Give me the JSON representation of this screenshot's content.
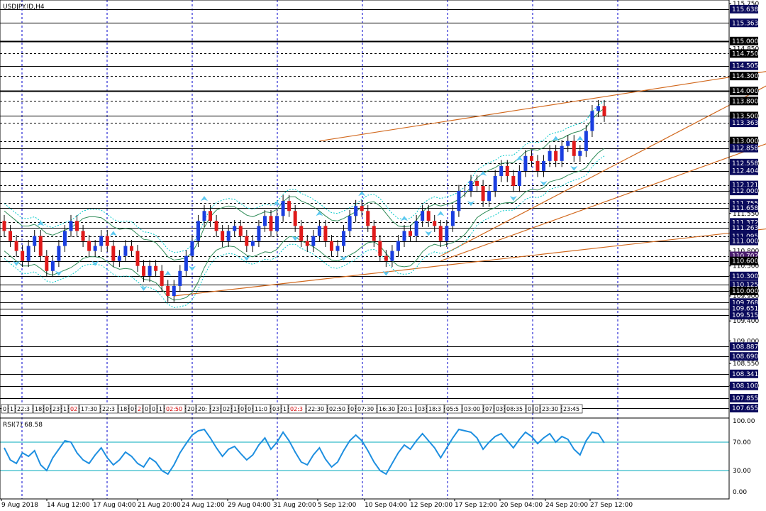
{
  "window": {
    "title": "USDJPY.ID,H4"
  },
  "indicator": {
    "label": "RSI(7) 68.58"
  },
  "chart_data": [
    {
      "type": "candlestick",
      "title": "USDJPY.ID,H4",
      "ylim": [
        107.5,
        115.75
      ],
      "price_axis_ticks": [
        "115.750",
        "114.850",
        "114.300",
        "114.000",
        "113.500",
        "113.000",
        "112.550",
        "112.000",
        "111.550",
        "111.000",
        "110.800",
        "110.500",
        "110.300",
        "110.000",
        "109.900",
        "109.400",
        "109.000",
        "108.550",
        "108.100"
      ],
      "levels": [
        {
          "value": 115.638,
          "style": "solid"
        },
        {
          "value": 115.363,
          "style": "solid"
        },
        {
          "value": 115.0,
          "style": "solid-bold"
        },
        {
          "value": 114.75,
          "style": "dashed"
        },
        {
          "value": 114.505,
          "style": "solid"
        },
        {
          "value": 114.3,
          "style": "dashed"
        },
        {
          "value": 114.0,
          "style": "solid-bold"
        },
        {
          "value": 113.8,
          "style": "dashed"
        },
        {
          "value": 113.5,
          "style": "solid"
        },
        {
          "value": 113.363,
          "style": "dashed"
        },
        {
          "value": 113.0,
          "style": "dashed"
        },
        {
          "value": 112.858,
          "style": "solid"
        },
        {
          "value": 112.558,
          "style": "dashed"
        },
        {
          "value": 112.404,
          "style": "solid"
        },
        {
          "value": 112.121,
          "style": "dashed"
        },
        {
          "value": 112.0,
          "style": "solid"
        },
        {
          "value": 111.755,
          "style": "dashed"
        },
        {
          "value": 111.658,
          "style": "solid"
        },
        {
          "value": 111.372,
          "style": "dashed"
        },
        {
          "value": 111.263,
          "style": "solid"
        },
        {
          "value": 111.095,
          "style": "dashed"
        },
        {
          "value": 111.0,
          "style": "solid"
        },
        {
          "value": 110.702,
          "style": "dashed"
        },
        {
          "value": 110.6,
          "style": "solid"
        },
        {
          "value": 110.3,
          "style": "solid"
        },
        {
          "value": 110.125,
          "style": "solid"
        },
        {
          "value": 110.0,
          "style": "solid"
        },
        {
          "value": 109.768,
          "style": "solid"
        },
        {
          "value": 109.651,
          "style": "solid"
        },
        {
          "value": 109.515,
          "style": "solid"
        },
        {
          "value": 108.887,
          "style": "solid"
        },
        {
          "value": 108.69,
          "style": "solid"
        },
        {
          "value": 108.341,
          "style": "solid"
        },
        {
          "value": 108.1,
          "style": "solid"
        },
        {
          "value": 107.855,
          "style": "solid"
        },
        {
          "value": 107.655,
          "style": "solid"
        }
      ],
      "price_tags": [
        {
          "value": 115.638,
          "text": "115.638",
          "color": "#0a0a5c"
        },
        {
          "value": 115.363,
          "text": "115.363",
          "color": "#0a0a5c"
        },
        {
          "value": 115.0,
          "text": "115.000",
          "color": "#000000"
        },
        {
          "value": 114.75,
          "text": "114.750",
          "color": "#000000"
        },
        {
          "value": 114.505,
          "text": "114.505",
          "color": "#0a0a5c"
        },
        {
          "value": 114.3,
          "text": "114.300",
          "color": "#000000"
        },
        {
          "value": 114.0,
          "text": "114.000",
          "color": "#000000"
        },
        {
          "value": 113.8,
          "text": "113.800",
          "color": "#000000"
        },
        {
          "value": 113.5,
          "text": "113.500",
          "color": "#000000"
        },
        {
          "value": 113.363,
          "text": "113.363",
          "color": "#0a0a5c"
        },
        {
          "value": 113.0,
          "text": "113.000",
          "color": "#000000"
        },
        {
          "value": 112.858,
          "text": "112.858",
          "color": "#0a0a5c"
        },
        {
          "value": 112.558,
          "text": "112.558",
          "color": "#0a0a5c"
        },
        {
          "value": 112.404,
          "text": "112.404",
          "color": "#0a0a5c"
        },
        {
          "value": 112.121,
          "text": "112.121",
          "color": "#0a0a5c"
        },
        {
          "value": 112.0,
          "text": "112.000",
          "color": "#0a0a5c"
        },
        {
          "value": 111.755,
          "text": "111.755",
          "color": "#0a0a5c"
        },
        {
          "value": 111.658,
          "text": "111.658",
          "color": "#0a0a5c"
        },
        {
          "value": 111.372,
          "text": "111.372",
          "color": "#0a0a5c"
        },
        {
          "value": 111.263,
          "text": "111.263",
          "color": "#0a0a5c"
        },
        {
          "value": 111.095,
          "text": "111.095",
          "color": "#0a0a5c"
        },
        {
          "value": 111.0,
          "text": "111.000",
          "color": "#0a0a5c"
        },
        {
          "value": 110.702,
          "text": "110.702",
          "color": "#4b1e6e"
        },
        {
          "value": 110.6,
          "text": "110.600",
          "color": "#000000"
        },
        {
          "value": 110.3,
          "text": "110.300",
          "color": "#0a0a5c"
        },
        {
          "value": 110.125,
          "text": "110.125",
          "color": "#0a0a5c"
        },
        {
          "value": 110.0,
          "text": "110.000",
          "color": "#000000"
        },
        {
          "value": 109.768,
          "text": "109.768",
          "color": "#0a0a5c"
        },
        {
          "value": 109.651,
          "text": "109.651",
          "color": "#0a0a5c"
        },
        {
          "value": 109.515,
          "text": "109.515",
          "color": "#0a0a5c"
        },
        {
          "value": 108.887,
          "text": "108.887",
          "color": "#0a0a5c"
        },
        {
          "value": 108.69,
          "text": "108.690",
          "color": "#0a0a5c"
        },
        {
          "value": 108.341,
          "text": "108.341",
          "color": "#0a0a5c"
        },
        {
          "value": 108.1,
          "text": "108.100",
          "color": "#0a0a5c"
        },
        {
          "value": 107.855,
          "text": "107.855",
          "color": "#0a0a5c"
        },
        {
          "value": 107.655,
          "text": "107.655",
          "color": "#0a0a5c"
        }
      ],
      "x_labels": [
        "9 Aug 2018",
        "14 Aug 12:00",
        "17 Aug 04:00",
        "21 Aug 20:00",
        "24 Aug 12:00",
        "29 Aug 04:00",
        "31 Aug 20:00",
        "5 Sep 12:00",
        "10 Sep 04:00",
        "12 Sep 20:00",
        "17 Sep 12:00",
        "20 Sep 04:00",
        "24 Sep 20:00",
        "27 Sep 12:00"
      ],
      "close": [
        111.2,
        111.0,
        110.8,
        110.6,
        110.9,
        111.1,
        110.7,
        110.4,
        110.6,
        110.9,
        111.2,
        111.4,
        111.2,
        111.0,
        110.8,
        110.9,
        111.1,
        110.9,
        110.6,
        110.7,
        110.9,
        110.8,
        110.5,
        110.3,
        110.5,
        110.4,
        110.1,
        109.9,
        110.1,
        110.4,
        110.7,
        111.0,
        111.4,
        111.6,
        111.4,
        111.2,
        111.0,
        111.2,
        111.3,
        111.1,
        110.9,
        111.0,
        111.3,
        111.5,
        111.2,
        111.5,
        111.8,
        111.6,
        111.3,
        111.0,
        110.9,
        111.1,
        111.3,
        111.0,
        110.8,
        110.9,
        111.2,
        111.5,
        111.7,
        111.6,
        111.3,
        111.0,
        110.7,
        110.6,
        110.8,
        111.0,
        111.2,
        111.1,
        111.4,
        111.6,
        111.4,
        111.3,
        111.0,
        111.3,
        111.6,
        112.0,
        112.0,
        112.2,
        112.1,
        111.8,
        112.0,
        112.3,
        112.5,
        112.3,
        112.1,
        112.4,
        112.7,
        112.6,
        112.4,
        112.6,
        112.8,
        112.6,
        112.9,
        113.0,
        112.7,
        112.8,
        113.2,
        113.6,
        113.7,
        113.5
      ],
      "open": [
        111.4,
        111.2,
        111.0,
        110.8,
        110.6,
        110.9,
        111.1,
        110.7,
        110.4,
        110.6,
        110.9,
        111.2,
        111.4,
        111.2,
        111.0,
        110.8,
        110.9,
        111.1,
        110.9,
        110.6,
        110.7,
        110.9,
        110.8,
        110.5,
        110.3,
        110.5,
        110.4,
        110.1,
        109.9,
        110.1,
        110.4,
        110.7,
        111.0,
        111.4,
        111.6,
        111.4,
        111.2,
        111.0,
        111.2,
        111.3,
        111.1,
        110.9,
        111.0,
        111.3,
        111.5,
        111.2,
        111.5,
        111.8,
        111.6,
        111.3,
        111.0,
        110.9,
        111.1,
        111.3,
        111.0,
        110.8,
        110.9,
        111.2,
        111.5,
        111.7,
        111.6,
        111.3,
        111.0,
        110.7,
        110.6,
        110.8,
        111.0,
        111.2,
        111.1,
        111.4,
        111.6,
        111.4,
        111.3,
        111.0,
        111.3,
        111.6,
        112.0,
        112.0,
        112.2,
        112.1,
        111.8,
        112.0,
        112.3,
        112.5,
        112.3,
        112.1,
        112.4,
        112.7,
        112.6,
        112.4,
        112.6,
        112.8,
        112.6,
        112.9,
        113.0,
        112.7,
        112.8,
        113.2,
        113.6,
        113.7
      ],
      "rsi": [
        62,
        45,
        40,
        55,
        50,
        58,
        38,
        30,
        48,
        60,
        72,
        70,
        55,
        45,
        40,
        52,
        62,
        48,
        38,
        45,
        56,
        50,
        40,
        35,
        48,
        42,
        30,
        25,
        38,
        55,
        68,
        80,
        86,
        88,
        76,
        62,
        50,
        60,
        64,
        54,
        45,
        52,
        66,
        76,
        60,
        70,
        84,
        72,
        56,
        42,
        38,
        52,
        62,
        46,
        35,
        42,
        58,
        72,
        80,
        72,
        58,
        42,
        30,
        25,
        40,
        55,
        66,
        60,
        72,
        82,
        72,
        62,
        48,
        62,
        76,
        88,
        86,
        84,
        76,
        60,
        70,
        78,
        82,
        72,
        62,
        74,
        84,
        78,
        68,
        76,
        82,
        70,
        78,
        74,
        60,
        52,
        72,
        84,
        82,
        69
      ],
      "arrows_up": [
        6,
        18,
        27,
        33,
        45,
        52,
        59,
        66,
        72,
        79,
        85,
        91,
        95
      ],
      "arrows_down": [
        2,
        9,
        15,
        23,
        31,
        40,
        48,
        56,
        63,
        70,
        77,
        84,
        89,
        94
      ]
    },
    {
      "type": "line",
      "title": "RSI(7) 68.58",
      "ylim": [
        0,
        100
      ],
      "y_ticks": [
        "100.00",
        "70.00",
        "30.00",
        "0.00"
      ],
      "levels": [
        70,
        30
      ],
      "series": [
        {
          "values": "rsi"
        }
      ]
    }
  ],
  "timestamp_strip": [
    {
      "t": "0",
      "red": false
    },
    {
      "t": "1",
      "red": false
    },
    {
      "t": "22:3",
      "red": false
    },
    {
      "t": "18",
      "red": false
    },
    {
      "t": "0",
      "red": false
    },
    {
      "t": "23",
      "red": false
    },
    {
      "t": "1",
      "red": false
    },
    {
      "t": "02",
      "red": true
    },
    {
      "t": "17:30",
      "red": false
    },
    {
      "t": "22:3",
      "red": false
    },
    {
      "t": "18",
      "red": false
    },
    {
      "t": "0",
      "red": false
    },
    {
      "t": "2",
      "red": true
    },
    {
      "t": "0",
      "red": false
    },
    {
      "t": "0",
      "red": false
    },
    {
      "t": "1",
      "red": false
    },
    {
      "t": "02:50",
      "red": true
    },
    {
      "t": "20",
      "red": false
    },
    {
      "t": "20:",
      "red": false
    },
    {
      "t": "23",
      "red": false
    },
    {
      "t": "02",
      "red": false
    },
    {
      "t": "1",
      "red": false
    },
    {
      "t": "0",
      "red": false
    },
    {
      "t": "0",
      "red": false
    },
    {
      "t": "11:0",
      "red": false
    },
    {
      "t": "03",
      "red": false
    },
    {
      "t": "1",
      "red": false
    },
    {
      "t": "02:3",
      "red": true
    },
    {
      "t": "22:30",
      "red": false
    },
    {
      "t": "02:50",
      "red": false
    },
    {
      "t": "0",
      "red": false
    },
    {
      "t": "07:30",
      "red": false
    },
    {
      "t": "16:30",
      "red": false
    },
    {
      "t": "20:1",
      "red": false
    },
    {
      "t": "03",
      "red": false
    },
    {
      "t": "18:3",
      "red": false
    },
    {
      "t": "05:5",
      "red": false
    },
    {
      "t": "03:00",
      "red": false
    },
    {
      "t": "07",
      "red": false
    },
    {
      "t": "03",
      "red": false
    },
    {
      "t": "08:35",
      "red": false
    },
    {
      "t": "0",
      "red": false
    },
    {
      "t": "0",
      "red": false
    },
    {
      "t": "23:30",
      "red": false
    },
    {
      "t": "23:45",
      "red": false
    }
  ],
  "colors": {
    "background": "#ffffff",
    "grid": "#0000cc",
    "bull": "#1a3ee0",
    "bear": "#e01a1a",
    "wick": "#000000",
    "trend": "#d2691e",
    "band_outer": "#00c8c8",
    "band_inner": "#2e8b57",
    "arrow": "#5bc8f0",
    "rsi": "#1e8fe0",
    "rsi_level": "#00aabb"
  }
}
